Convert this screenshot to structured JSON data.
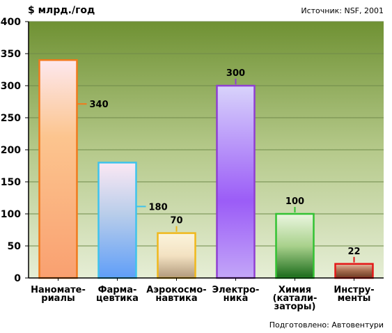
{
  "chart_data": {
    "type": "bar",
    "title": "",
    "ylabel": "$ млрд./год",
    "xlabel": "",
    "source": "Источник: NSF, 2001",
    "credit": "Подготовлено: Автовентури",
    "ylim": [
      0,
      400
    ],
    "yticks": [
      0,
      50,
      100,
      150,
      200,
      250,
      300,
      350,
      400
    ],
    "grid": true,
    "legend": "none",
    "categories": [
      [
        "Наномате-",
        "риалы"
      ],
      [
        "Фарма-",
        "цевтика"
      ],
      [
        "Аэрокосмо-",
        "навтика"
      ],
      [
        "Электро-",
        "ника"
      ],
      [
        "Химия",
        "(катали-",
        "заторы)"
      ],
      [
        "Инстру-",
        "менты"
      ]
    ],
    "values": [
      340,
      180,
      70,
      300,
      100,
      22
    ],
    "value_labels": [
      "340",
      "180",
      "70",
      "300",
      "100",
      "22"
    ],
    "colors": {
      "background_top": "#6f9133",
      "background_bottom": "#e6eed6",
      "bar_strokes": [
        "#f07a1c",
        "#3fc3ec",
        "#f0b81c",
        "#8f3fd2",
        "#33c233",
        "#e41818"
      ]
    }
  }
}
